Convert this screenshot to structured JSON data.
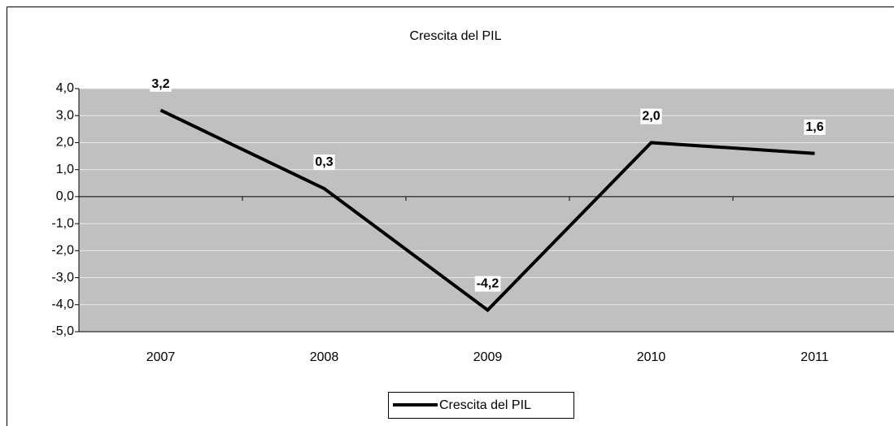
{
  "chart_data": {
    "type": "line",
    "title": "Crescita del PIL",
    "categories": [
      "2007",
      "2008",
      "2009",
      "2010",
      "2011"
    ],
    "series": [
      {
        "name": "Crescita del PIL",
        "color": "#000000",
        "values": [
          3.2,
          0.3,
          -4.2,
          2.0,
          1.6
        ],
        "value_labels": [
          "3,2",
          "0,3",
          "-4,2",
          "2,0",
          "1,6"
        ]
      }
    ],
    "ylim": [
      -5,
      4
    ],
    "yticks": [
      {
        "value": -5,
        "label": "-5,0"
      },
      {
        "value": -4,
        "label": "-4,0"
      },
      {
        "value": -3,
        "label": "-3,0"
      },
      {
        "value": -2,
        "label": "-2,0"
      },
      {
        "value": -1,
        "label": "-1,0"
      },
      {
        "value": 0,
        "label": "0,0"
      },
      {
        "value": 1,
        "label": "1,0"
      },
      {
        "value": 2,
        "label": "2,0"
      },
      {
        "value": 3,
        "label": "3,0"
      },
      {
        "value": 4,
        "label": "4,0"
      }
    ],
    "grid": true,
    "plot_background": "#c0c0c0",
    "legend": "bottom"
  }
}
